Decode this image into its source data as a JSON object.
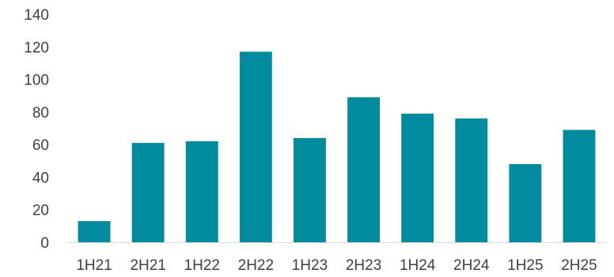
{
  "chart_data": {
    "type": "bar",
    "title": "",
    "xlabel": "",
    "ylabel": "",
    "categories": [
      "1H21",
      "2H21",
      "1H22",
      "2H22",
      "1H23",
      "2H23",
      "1H24",
      "2H24",
      "1H25",
      "2H25"
    ],
    "values": [
      13,
      61,
      62,
      117,
      64,
      89,
      79,
      76,
      48,
      69
    ],
    "ylim": [
      0,
      140
    ],
    "yticks": [
      0,
      20,
      40,
      60,
      80,
      100,
      120,
      140
    ],
    "grid": false,
    "legend": "none",
    "bar_color": "#008C9E"
  }
}
